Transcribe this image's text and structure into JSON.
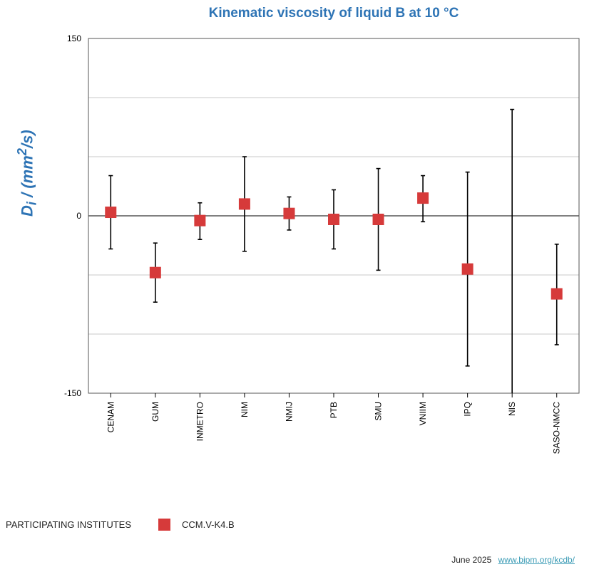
{
  "chart_data": {
    "type": "scatter",
    "title": "Kinematic viscosity of liquid B at 10 °C",
    "ylabel": {
      "symbol": "D",
      "subscript": "i",
      "unit_prefix": " / (mm",
      "unit_power": "2",
      "unit_suffix": "/s)"
    },
    "ylim": [
      -150,
      150
    ],
    "yticks": [
      150,
      0,
      -150
    ],
    "gridlines": [
      100,
      50,
      -50,
      -100
    ],
    "categories": [
      "CENAM",
      "GUM",
      "INMETRO",
      "NIM",
      "NMIJ",
      "PTB",
      "SMU",
      "VNIIM",
      "IPQ",
      "NIS",
      "SASO-NMCC"
    ],
    "series": [
      {
        "name": "CCM.V-K4.B",
        "values": [
          3,
          -48,
          -4,
          10,
          2,
          -3,
          -3,
          15,
          -45,
          null,
          -66
        ],
        "error_low": [
          -28,
          -73,
          -20,
          -30,
          -12,
          -28,
          -46,
          -5,
          -127,
          -150,
          -109
        ],
        "error_high": [
          34,
          -23,
          11,
          50,
          16,
          22,
          40,
          34,
          37,
          90,
          -24
        ]
      }
    ],
    "colors": {
      "marker": "#d63a3a",
      "title": "#2e74b5",
      "axis": "#000000",
      "grid": "#c8c8c8"
    }
  },
  "legend": {
    "heading": "PARTICIPATING INSTITUTES",
    "entry": "CCM.V-K4.B"
  },
  "footer": {
    "date": "June 2025",
    "link": "www.bipm.org/kcdb/"
  }
}
